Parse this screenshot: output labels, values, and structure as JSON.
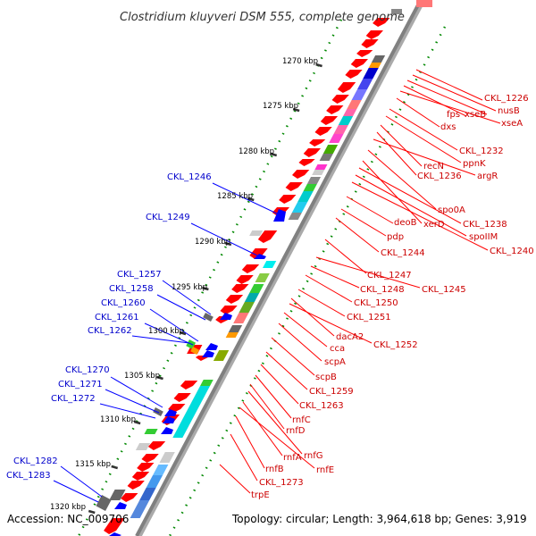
{
  "title": "Clostridium kluyveri DSM 555, complete genome",
  "footer": {
    "accession": "Accession: NC_009706",
    "topology": "Topology: circular; Length: 3,964,618 bp; Genes: 3,919"
  },
  "colors": {
    "forward": "#ff0000",
    "reverse": "#0000ff",
    "label_forward": "#cc0000",
    "label_reverse": "#0000cc",
    "backbone": "#888888",
    "ticks": "#008800"
  },
  "scale": {
    "ticks": [
      {
        "label": "1270 kbp"
      },
      {
        "label": "1275 kbp"
      },
      {
        "label": "1280 kbp"
      },
      {
        "label": "1285 kbp"
      },
      {
        "label": "1290 kbp"
      },
      {
        "label": "1295 kbp"
      },
      {
        "label": "1300 kbp"
      },
      {
        "label": "1305 kbp"
      },
      {
        "label": "1310 kbp"
      },
      {
        "label": "1315 kbp"
      },
      {
        "label": "1320 kbp"
      }
    ]
  },
  "reverse_labels": [
    "CKL_1246",
    "CKL_1249",
    "CKL_1257",
    "CKL_1258",
    "CKL_1260",
    "CKL_1261",
    "CKL_1262",
    "CKL_1270",
    "CKL_1271",
    "CKL_1272",
    "CKL_1282",
    "CKL_1283"
  ],
  "forward_labels": [
    "CKL_1226",
    "nusB",
    "fps",
    "xseB",
    "xseA",
    "dxs",
    "CKL_1232",
    "ppnK",
    "recN",
    "CKL_1236",
    "argR",
    "spo0A",
    "deoB",
    "xerD",
    "CKL_1238",
    "spoIIM",
    "pdp",
    "CKL_1240",
    "CKL_1244",
    "CKL_1247",
    "CKL_1245",
    "CKL_1248",
    "CKL_1250",
    "CKL_1251",
    "dacA2",
    "CKL_1252",
    "cca",
    "scpA",
    "scpB",
    "CKL_1259",
    "CKL_1263",
    "rnfC",
    "rnfD",
    "rnfG",
    "rnfA",
    "rnfE",
    "rnfB",
    "CKL_1273",
    "trpE"
  ]
}
